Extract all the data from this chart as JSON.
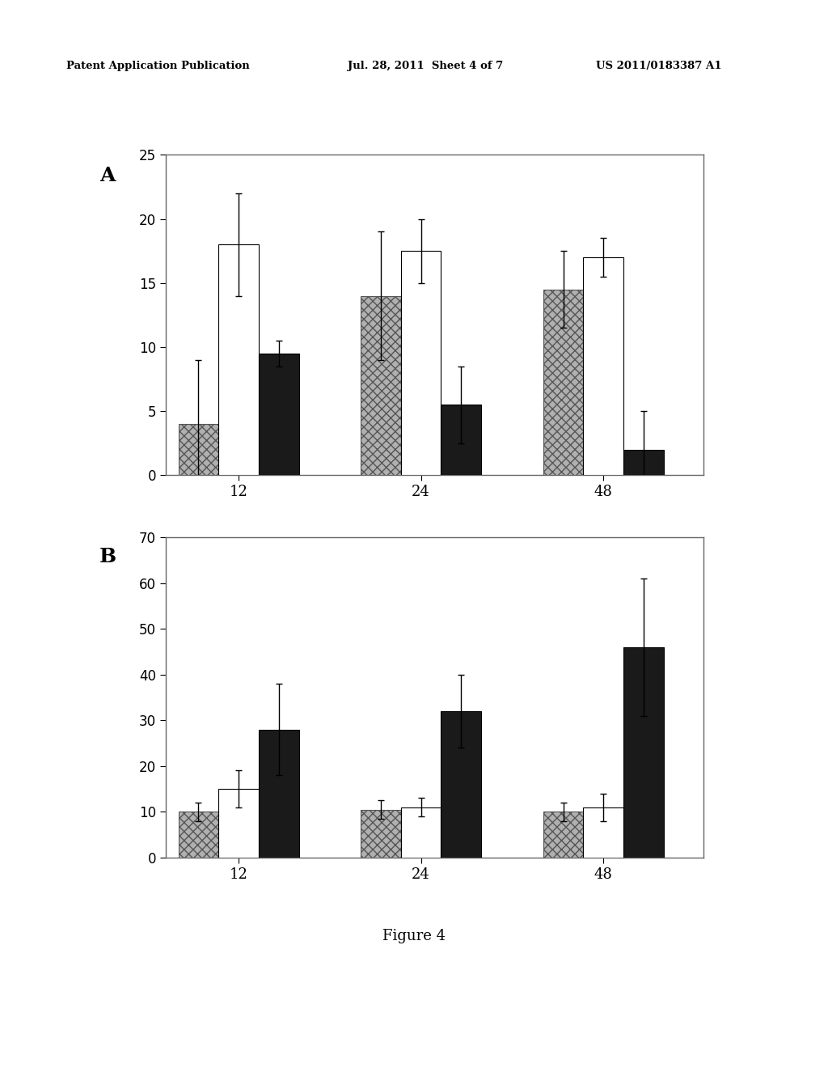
{
  "chart_A": {
    "groups": [
      "12",
      "24",
      "48"
    ],
    "series": {
      "hatched": {
        "values": [
          4.0,
          14.0,
          14.5
        ],
        "errors": [
          5.0,
          5.0,
          3.0
        ]
      },
      "white": {
        "values": [
          18.0,
          17.5,
          17.0
        ],
        "errors": [
          4.0,
          2.5,
          1.5
        ]
      },
      "black": {
        "values": [
          9.5,
          5.5,
          2.0
        ],
        "errors": [
          1.0,
          3.0,
          3.0
        ]
      }
    },
    "ylim": [
      0,
      25
    ],
    "yticks": [
      0,
      5,
      10,
      15,
      20,
      25
    ],
    "label": "A"
  },
  "chart_B": {
    "groups": [
      "12",
      "24",
      "48"
    ],
    "series": {
      "hatched": {
        "values": [
          10.0,
          10.5,
          10.0
        ],
        "errors": [
          2.0,
          2.0,
          2.0
        ]
      },
      "white": {
        "values": [
          15.0,
          11.0,
          11.0
        ],
        "errors": [
          4.0,
          2.0,
          3.0
        ]
      },
      "black": {
        "values": [
          28.0,
          32.0,
          46.0
        ],
        "errors": [
          10.0,
          8.0,
          15.0
        ]
      }
    },
    "ylim": [
      0,
      70
    ],
    "yticks": [
      0,
      10,
      20,
      30,
      40,
      50,
      60,
      70
    ],
    "label": "B"
  },
  "figure_label": "Figure 4",
  "bar_width": 0.22,
  "group_positions": [
    1.0,
    2.0,
    3.0
  ],
  "header_left": "Patent Application Publication",
  "header_mid": "Jul. 28, 2011  Sheet 4 of 7",
  "header_right": "US 2011/0183387 A1",
  "background_color": "#ffffff",
  "bar_colors": {
    "hatched": "#b0b0b0",
    "white": "#ffffff",
    "black": "#1a1a1a"
  },
  "hatch_pattern": "xxx"
}
